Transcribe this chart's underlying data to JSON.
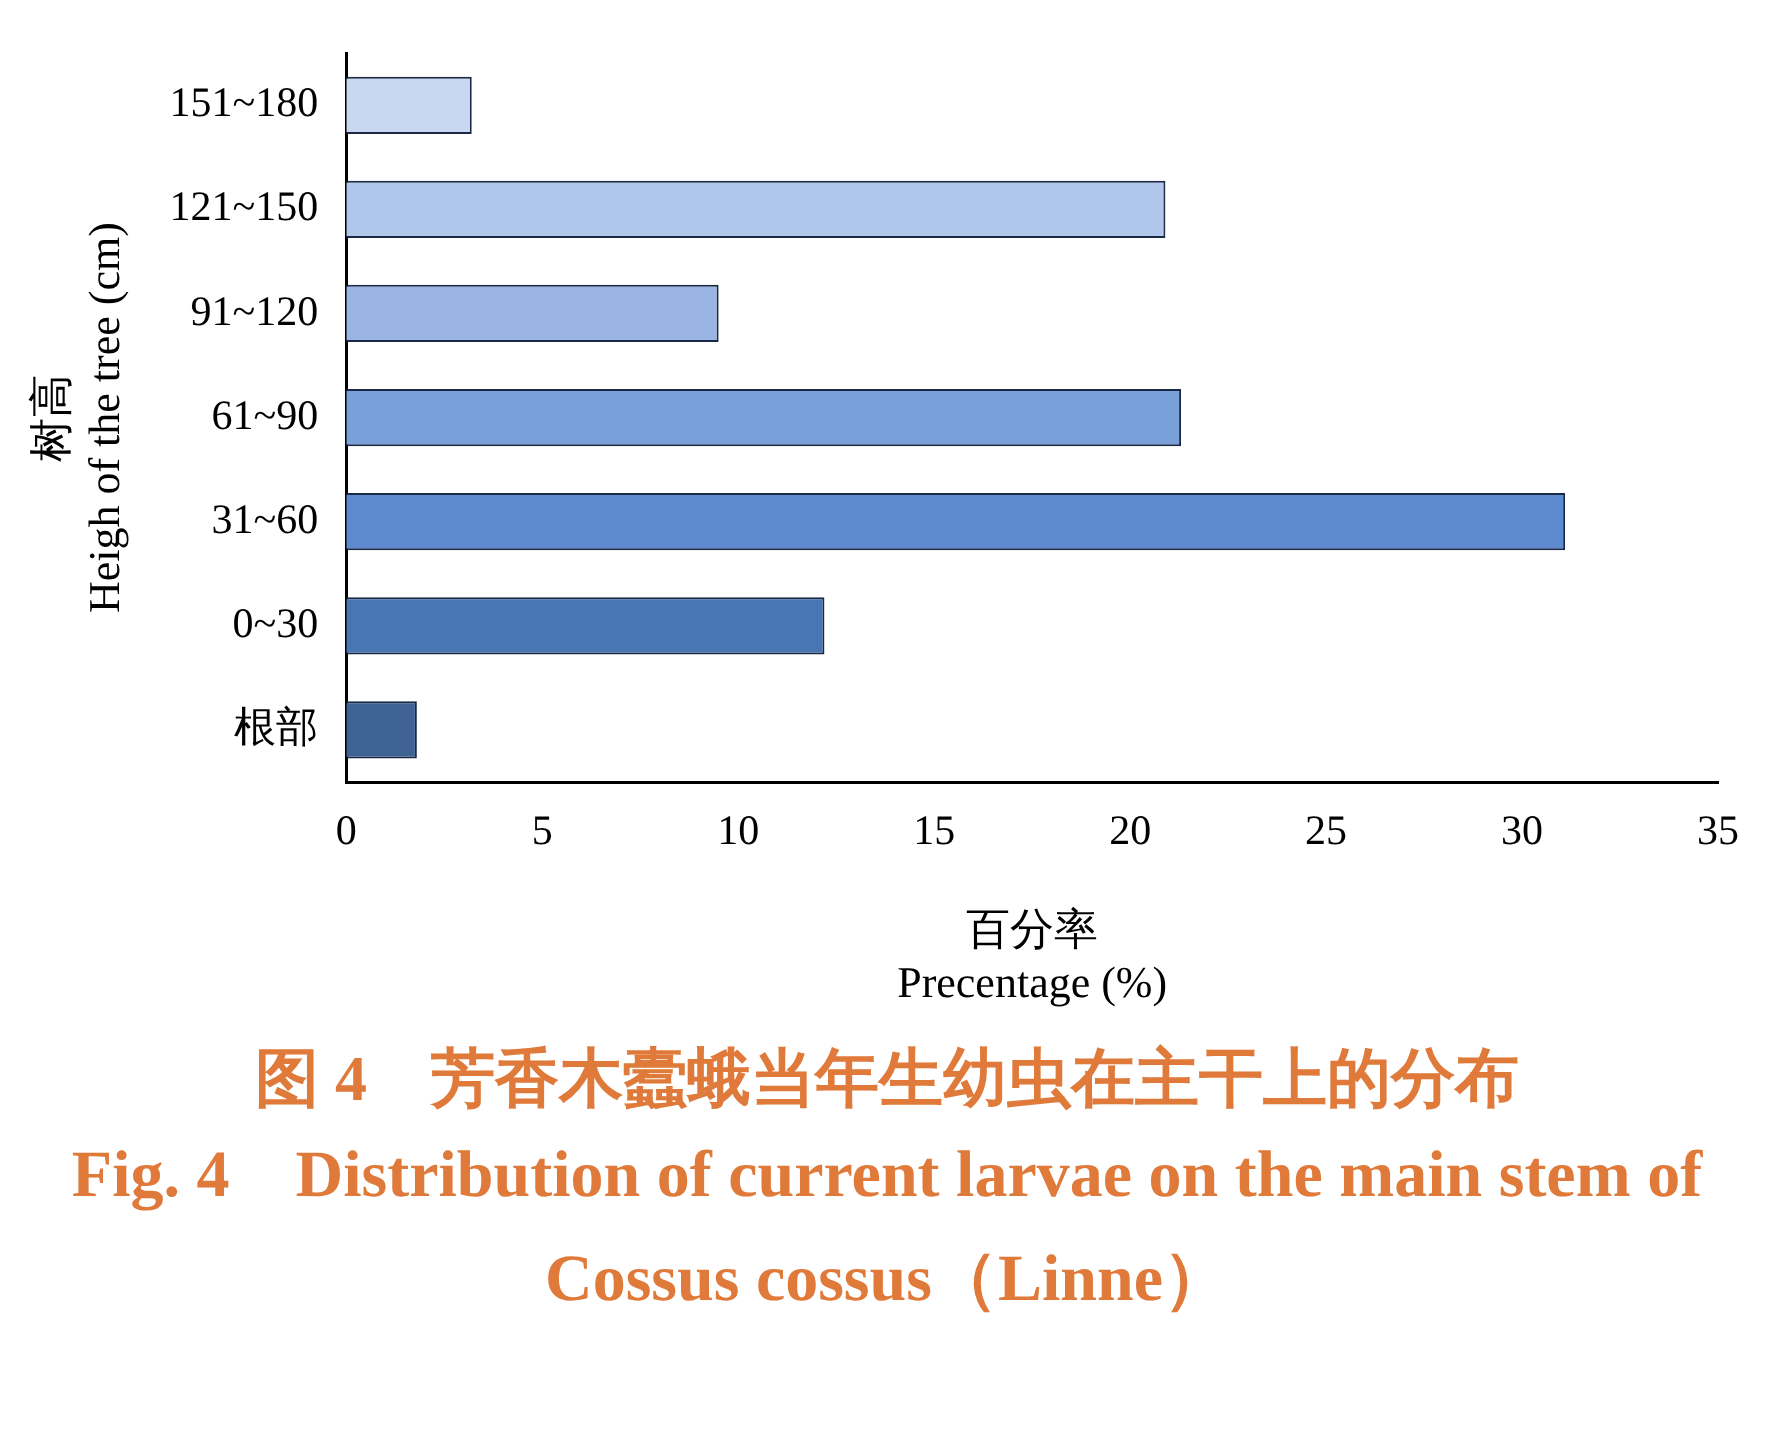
{
  "chart_data": {
    "type": "bar",
    "orientation": "horizontal",
    "title": "图 4　芳香木蠹蛾当年生幼虫在主干上的分布",
    "subtitle": "Fig. 4　Distribution of current larvae on the main stem of Cossus cossus（Linne）",
    "xlabel": "百分率\nPrecentage (%)",
    "ylabel": "树高\nHeigh of the tree (cm)",
    "categories": [
      "151~180",
      "121~150",
      "91~120",
      "61~90",
      "31~60",
      "0~30",
      "根部"
    ],
    "values": [
      3.2,
      20.9,
      9.5,
      21.3,
      31.1,
      12.2,
      1.8
    ],
    "colors": [
      "#c9d8f0",
      "#b0c6ea",
      "#9ab5e2",
      "#7aa0da",
      "#5e8bd0",
      "#4a75b4",
      "#3d6293"
    ],
    "xlim": [
      0,
      35
    ],
    "xticks": [
      0,
      5,
      10,
      15,
      20,
      25,
      30,
      35
    ],
    "grid": false,
    "legend": false
  }
}
